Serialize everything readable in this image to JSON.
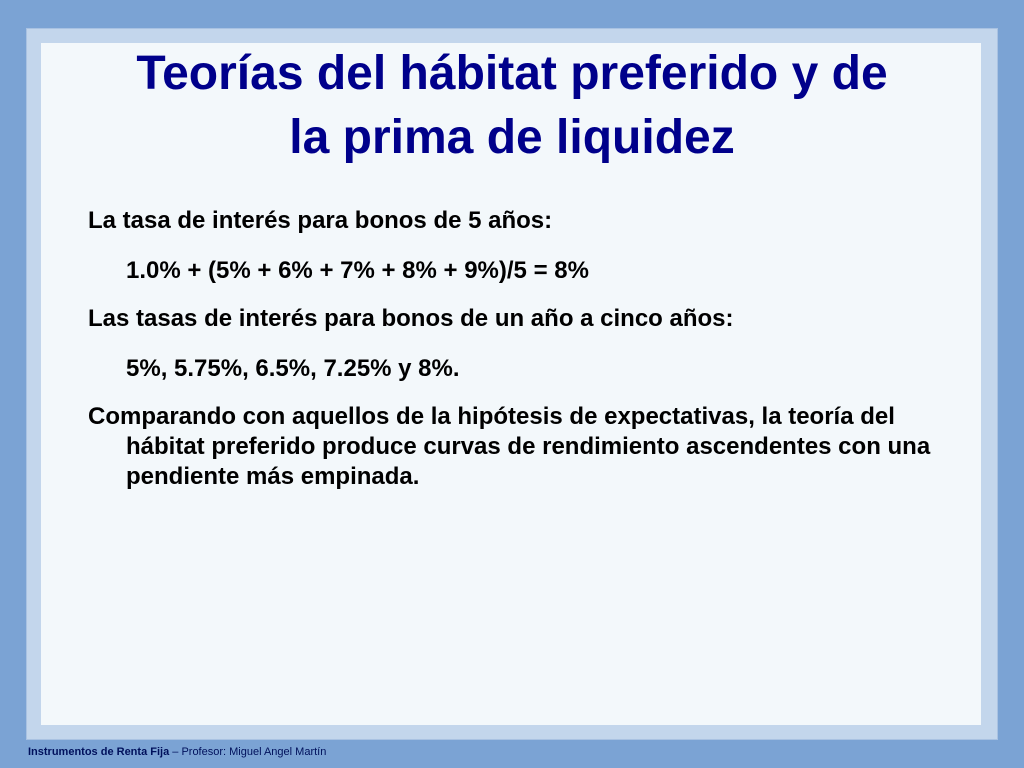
{
  "slide": {
    "title_line1": "Teorías del hábitat preferido y de",
    "title_line2": "la prima de liquidez",
    "items": [
      "La tasa de interés para bonos de 5 años:",
      "1.0% + (5% + 6% + 7% + 8% + 9%)/5 = 8%",
      "Las tasas de interés para bonos de un año a cinco años:",
      "5%, 5.75%, 6.5%, 7.25% y 8%.",
      "Comparando con aquellos de la hipótesis de expectativas, la teoría del hábitat preferido  produce curvas de rendimiento ascendentes con una pendiente más empinada."
    ]
  },
  "footer": {
    "course": "Instrumentos de Renta Fija",
    "separator": " – ",
    "professor": "Profesor: Miguel Angel Martín"
  },
  "colors": {
    "title": "#00008b",
    "background": "#7ba3d4",
    "slide": "#f3f8fb"
  }
}
